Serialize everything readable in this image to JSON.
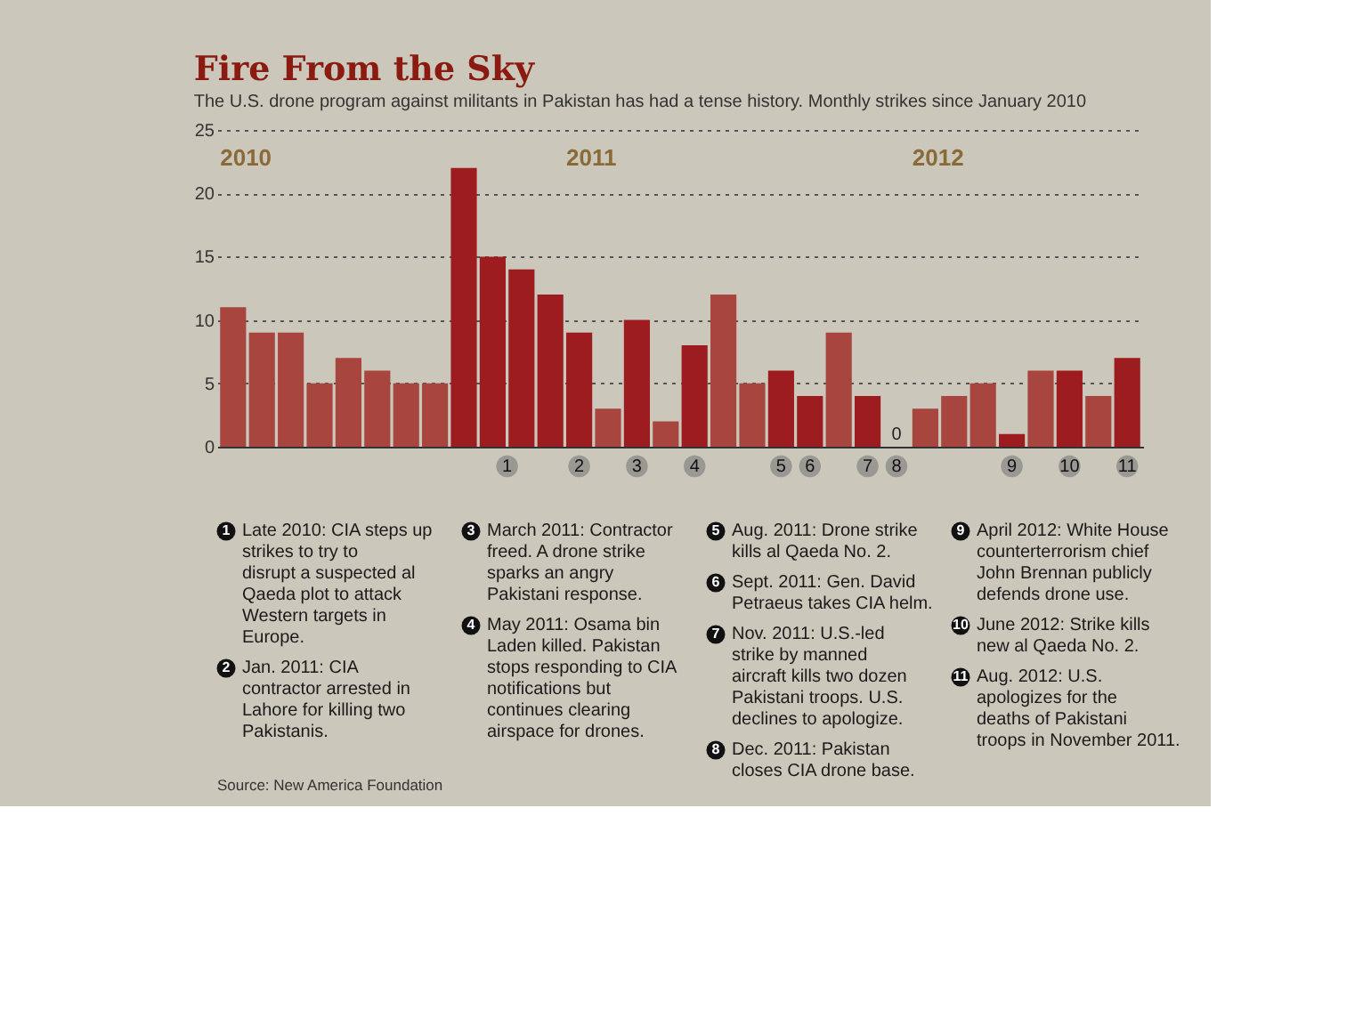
{
  "chart_data": {
    "type": "bar",
    "title": "Fire From the Sky",
    "subtitle": "The U.S. drone program against militants in Pakistan has had a tense history. Monthly strikes since January 2010",
    "categories": [
      null,
      null,
      null,
      null,
      null,
      null,
      null,
      null,
      null,
      null,
      null,
      null,
      null,
      null,
      null,
      null,
      null,
      null,
      null,
      null,
      null,
      null,
      null,
      null,
      null,
      null,
      null,
      null,
      null,
      null,
      null,
      null
    ],
    "values": [
      11,
      9,
      9,
      5,
      7,
      6,
      5,
      5,
      22,
      15,
      14,
      12,
      9,
      3,
      10,
      2,
      8,
      12,
      5,
      6,
      4,
      9,
      4,
      0,
      3,
      4,
      5,
      1,
      6,
      6,
      4,
      7
    ],
    "colors": [
      "#a8453f",
      "#a8453f",
      "#a8453f",
      "#a8453f",
      "#a8453f",
      "#a8453f",
      "#a8453f",
      "#a8453f",
      "#9c1c1f",
      "#9c1c1f",
      "#9c1c1f",
      "#9c1c1f",
      "#9c1c1f",
      "#a8453f",
      "#9c1c1f",
      "#a8453f",
      "#9c1c1f",
      "#a8453f",
      "#a8453f",
      "#9c1c1f",
      "#9c1c1f",
      "#a8453f",
      "#9c1c1f",
      "#a8453f",
      "#a8453f",
      "#a8453f",
      "#a8453f",
      "#9c1c1f",
      "#a8453f",
      "#9c1c1f",
      "#a8453f",
      "#9c1c1f"
    ],
    "value_labels": [
      null,
      null,
      null,
      null,
      null,
      null,
      null,
      null,
      null,
      null,
      null,
      null,
      null,
      null,
      null,
      null,
      null,
      null,
      null,
      null,
      null,
      null,
      null,
      "0",
      null,
      null,
      null,
      null,
      null,
      null,
      null,
      null
    ],
    "ylim": [
      0,
      25
    ],
    "yticks": [
      0,
      5,
      10,
      15,
      20,
      25
    ],
    "grid": "y",
    "annotations": [
      "2010",
      "2011",
      "2012",
      "1",
      "2",
      "3",
      "4",
      "5",
      "6",
      "7",
      "8",
      "9",
      "10",
      "11",
      "Late 2010: CIA steps up strikes to try to disrupt a suspected al Qaeda plot to attack Western targets in Europe.",
      "Jan. 2011: CIA contractor arrested in Lahore for killing two Pakistanis.",
      "March 2011: Contractor freed. A drone strike sparks an angry Pakistani response.",
      "May 2011: Osama bin Laden killed. Pakistan stops responding to CIA notifications but continues clearing airspace for drones.",
      "Aug. 2011: Drone strike kills al Qaeda No. 2.",
      "Sept. 2011: Gen. David Petraeus takes CIA helm.",
      "Nov. 2011: U.S.-led strike by manned aircraft kills two dozen Pakistani troops. U.S. declines to apologize.",
      "Dec. 2011: Pakistan closes CIA drone base.",
      "April 2012: White House counterterrorism chief John Brennan publicly defends drone use.",
      "June 2012: Strike kills new al Qaeda No. 2.",
      "Aug. 2012: U.S. apologizes for the deaths of Pakistani troops in November 2011.",
      "Source: New America Foundation"
    ]
  }
}
